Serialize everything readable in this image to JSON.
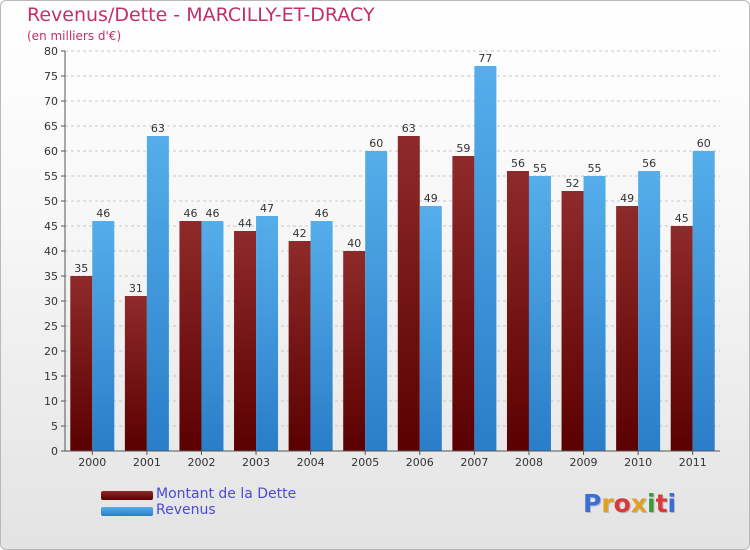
{
  "header": {
    "title": "Revenus/Dette - MARCILLY-ET-DRACY",
    "subtitle": "(en milliers d'€)"
  },
  "legend": {
    "items": [
      {
        "label": "Montant de la Dette",
        "color": "#7a1515"
      },
      {
        "label": "Revenus",
        "color": "#3a95dc"
      }
    ]
  },
  "logo": {
    "text": "Proxiti",
    "colors": [
      "#3a6fd8",
      "#e0a020",
      "#d83a3a",
      "#e0a020",
      "#3a9a3a",
      "#d83a3a",
      "#3a6fd8"
    ]
  },
  "chart_data": {
    "type": "bar",
    "title": "Revenus/Dette - MARCILLY-ET-DRACY",
    "ylabel": "(en milliers d'€)",
    "categories": [
      "2000",
      "2001",
      "2002",
      "2003",
      "2004",
      "2005",
      "2006",
      "2007",
      "2008",
      "2009",
      "2010",
      "2011"
    ],
    "series": [
      {
        "name": "Montant de la Dette",
        "color": "#7a1515",
        "values": [
          35,
          31,
          46,
          44,
          42,
          40,
          63,
          59,
          56,
          52,
          49,
          45
        ]
      },
      {
        "name": "Revenus",
        "color": "#3a95dc",
        "values": [
          46,
          63,
          46,
          47,
          46,
          60,
          49,
          77,
          55,
          55,
          56,
          60
        ]
      }
    ],
    "ylim": [
      0,
      80
    ],
    "yticks": [
      0,
      5,
      10,
      15,
      20,
      25,
      30,
      35,
      40,
      45,
      50,
      55,
      60,
      65,
      70,
      75,
      80
    ],
    "grid": true,
    "legend": "bottom-left"
  }
}
